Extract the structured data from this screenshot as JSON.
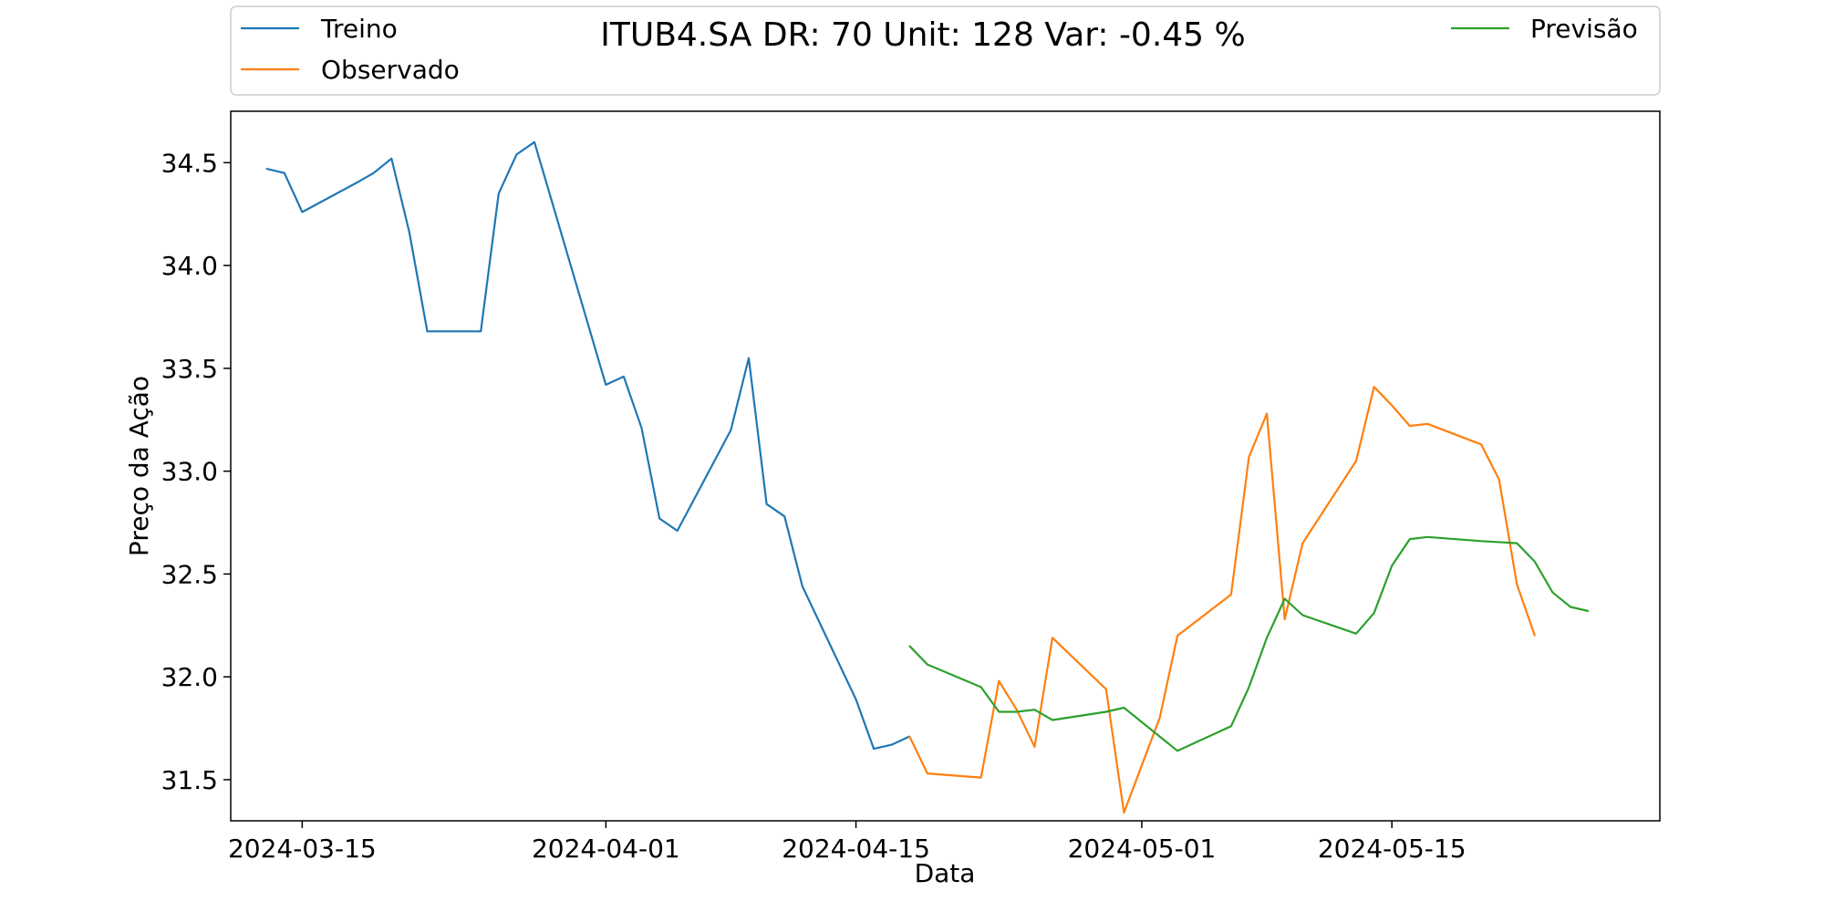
{
  "chart_data": {
    "type": "line",
    "title": "ITUB4.SA DR: 70 Unit: 128 Var: -0.45 %",
    "xlabel": "Data",
    "ylabel": "Preço da Ação",
    "xlim": [
      "2024-03-11",
      "2024-05-30"
    ],
    "ylim": [
      31.3,
      34.75
    ],
    "yticks": [
      31.5,
      32.0,
      32.5,
      33.0,
      33.5,
      34.0,
      34.5
    ],
    "ytick_labels": [
      "31.5",
      "32.0",
      "32.5",
      "33.0",
      "33.5",
      "34.0",
      "34.5"
    ],
    "xticks": [
      "2024-03-15",
      "2024-04-01",
      "2024-04-15",
      "2024-05-01",
      "2024-05-15"
    ],
    "xtick_labels": [
      "2024-03-15",
      "2024-04-01",
      "2024-04-15",
      "2024-05-01",
      "2024-05-15"
    ],
    "grid": false,
    "legend_placement": "above plot (top)",
    "series": [
      {
        "name": "Treino",
        "color": "#1f77b4",
        "x": [
          "2024-03-13",
          "2024-03-14",
          "2024-03-15",
          "2024-03-18",
          "2024-03-19",
          "2024-03-20",
          "2024-03-21",
          "2024-03-22",
          "2024-03-25",
          "2024-03-26",
          "2024-03-27",
          "2024-03-28",
          "2024-04-01",
          "2024-04-02",
          "2024-04-03",
          "2024-04-04",
          "2024-04-05",
          "2024-04-08",
          "2024-04-09",
          "2024-04-10",
          "2024-04-11",
          "2024-04-12",
          "2024-04-15",
          "2024-04-16",
          "2024-04-17",
          "2024-04-18"
        ],
        "y": [
          34.47,
          34.45,
          34.26,
          34.4,
          34.45,
          34.52,
          34.16,
          33.68,
          33.68,
          34.35,
          34.54,
          34.6,
          33.42,
          33.46,
          33.21,
          32.77,
          32.71,
          33.2,
          33.55,
          32.84,
          32.78,
          32.44,
          31.89,
          31.65,
          31.67,
          31.71
        ]
      },
      {
        "name": "Observado",
        "color": "#ff7f0e",
        "x": [
          "2024-04-18",
          "2024-04-19",
          "2024-04-22",
          "2024-04-23",
          "2024-04-24",
          "2024-04-25",
          "2024-04-26",
          "2024-04-29",
          "2024-04-30",
          "2024-05-02",
          "2024-05-03",
          "2024-05-06",
          "2024-05-07",
          "2024-05-08",
          "2024-05-09",
          "2024-05-10",
          "2024-05-13",
          "2024-05-14",
          "2024-05-15",
          "2024-05-16",
          "2024-05-17",
          "2024-05-20",
          "2024-05-21",
          "2024-05-22",
          "2024-05-23"
        ],
        "y": [
          31.71,
          31.53,
          31.51,
          31.98,
          31.84,
          31.66,
          32.19,
          31.94,
          31.34,
          31.8,
          32.2,
          32.4,
          33.07,
          33.28,
          32.28,
          32.65,
          33.05,
          33.41,
          33.32,
          33.22,
          33.23,
          33.13,
          32.96,
          32.45,
          32.2
        ]
      },
      {
        "name": "Previsão",
        "color": "#2ca02c",
        "x": [
          "2024-04-18",
          "2024-04-19",
          "2024-04-22",
          "2024-04-23",
          "2024-04-24",
          "2024-04-25",
          "2024-04-26",
          "2024-04-29",
          "2024-04-30",
          "2024-05-03",
          "2024-05-06",
          "2024-05-07",
          "2024-05-08",
          "2024-05-09",
          "2024-05-10",
          "2024-05-13",
          "2024-05-14",
          "2024-05-15",
          "2024-05-16",
          "2024-05-17",
          "2024-05-20",
          "2024-05-22",
          "2024-05-23",
          "2024-05-24",
          "2024-05-25",
          "2024-05-26"
        ],
        "y": [
          32.15,
          32.06,
          31.95,
          31.83,
          31.83,
          31.84,
          31.79,
          31.83,
          31.85,
          31.64,
          31.76,
          31.95,
          32.19,
          32.38,
          32.3,
          32.21,
          32.31,
          32.54,
          32.67,
          32.68,
          32.66,
          32.65,
          32.56,
          32.41,
          32.34,
          32.32
        ]
      }
    ]
  }
}
